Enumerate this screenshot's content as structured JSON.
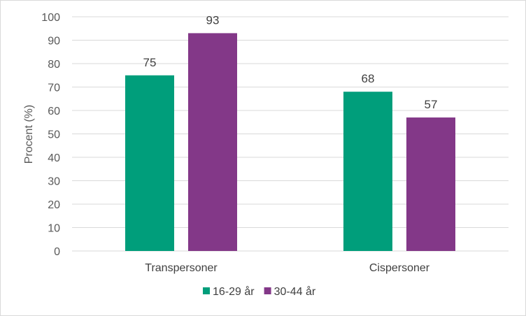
{
  "chart_data": {
    "type": "bar",
    "categories": [
      "Transpersoner",
      "Cispersoner"
    ],
    "series": [
      {
        "name": "16-29 år",
        "values": [
          75,
          68
        ],
        "color": "#009e7b"
      },
      {
        "name": "30-44 år",
        "values": [
          93,
          57
        ],
        "color": "#833888"
      }
    ],
    "ylabel": "Procent (%)",
    "ylim": [
      0,
      100
    ],
    "yticks": [
      0,
      10,
      20,
      30,
      40,
      50,
      60,
      70,
      80,
      90,
      100
    ],
    "grid": true,
    "legend": "bottom",
    "gridline_color": "#d9d9d9"
  }
}
